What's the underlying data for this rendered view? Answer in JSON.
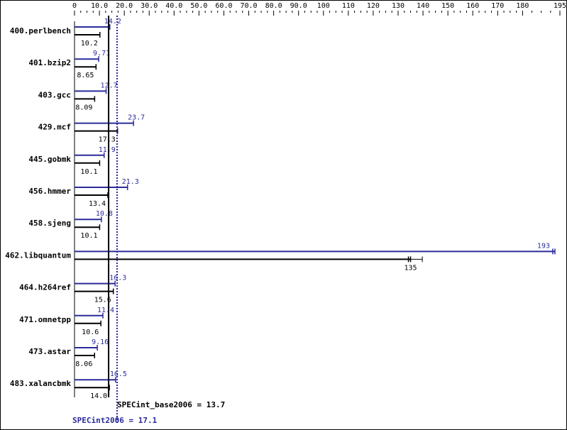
{
  "chart_data": {
    "type": "bar",
    "orientation": "horizontal",
    "categories": [
      "400.perlbench",
      "401.bzip2",
      "403.gcc",
      "429.mcf",
      "445.gobmk",
      "456.hmmer",
      "458.sjeng",
      "462.libquantum",
      "464.h264ref",
      "471.omnetpp",
      "473.astar",
      "483.xalancbmk"
    ],
    "series": [
      {
        "name": "SPECint2006",
        "color": "#2b2b9b",
        "values": [
          14.2,
          9.71,
          12.7,
          23.7,
          11.9,
          21.3,
          10.8,
          193,
          16.3,
          11.4,
          9.16,
          16.5
        ],
        "labels": [
          "14.2",
          "9.71",
          "12.7",
          "23.7",
          "11.9",
          "21.3",
          "10.8",
          "193",
          "16.3",
          "11.4",
          "9.16",
          "16.5"
        ]
      },
      {
        "name": "SPECint_base2006",
        "color": "#000000",
        "values": [
          10.2,
          8.65,
          8.09,
          17.3,
          10.1,
          13.4,
          10.1,
          135,
          15.6,
          10.6,
          8.06,
          14.0
        ],
        "labels": [
          "10.2",
          "8.65",
          "8.09",
          "17.3",
          "10.1",
          "13.4",
          "10.1",
          "135",
          "15.6",
          "10.6",
          "8.06",
          "14.0"
        ]
      }
    ],
    "x_ticks": [
      "0",
      "10.0",
      "20.0",
      "30.0",
      "40.0",
      "50.0",
      "60.0",
      "70.0",
      "80.0",
      "90.0",
      "100",
      "110",
      "120",
      "130",
      "140",
      "150",
      "160",
      "170",
      "180",
      "195"
    ],
    "x_tick_values": [
      0,
      10,
      20,
      30,
      40,
      50,
      60,
      70,
      80,
      90,
      100,
      110,
      120,
      130,
      140,
      150,
      160,
      170,
      180,
      195
    ],
    "xlim": [
      0,
      195
    ],
    "reference_lines": [
      {
        "label": "SPECint_base2006 = 13.7",
        "value": 13.7,
        "color": "#000000",
        "style": "solid"
      },
      {
        "label": "SPECint2006 = 17.1",
        "value": 17.1,
        "color": "#2b2b9b",
        "style": "dotted"
      }
    ],
    "grid": false
  }
}
